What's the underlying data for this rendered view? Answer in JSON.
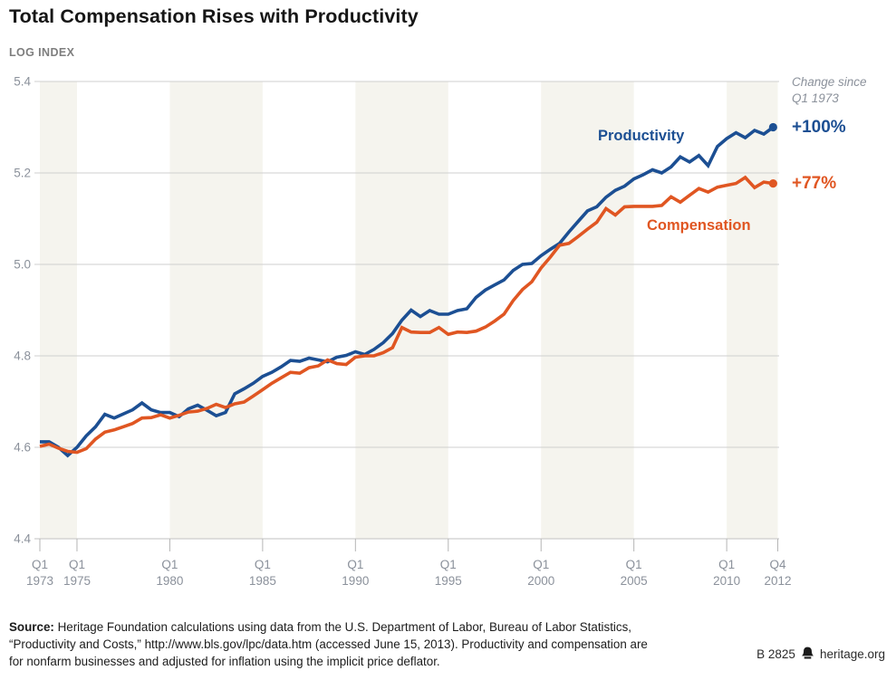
{
  "header": {
    "title": "Total Compensation Rises with Productivity"
  },
  "chart": {
    "axis_unit": "LOG INDEX",
    "note1": "Change since",
    "note2": "Q1 1973"
  },
  "chart_data": {
    "type": "line",
    "title": "Total Compensation Rises with Productivity",
    "ylabel": "LOG INDEX",
    "ylim": [
      4.4,
      5.4
    ],
    "yticks": [
      "5.4",
      "5.2",
      "5.0",
      "4.8",
      "4.6",
      "4.4"
    ],
    "ytick_values": [
      5.4,
      5.2,
      5.0,
      4.8,
      4.6,
      4.4
    ],
    "xlim": [
      1973,
      2012.75
    ],
    "xticks": [
      {
        "line1": "Q1",
        "line2": "1973",
        "x": 1973
      },
      {
        "line1": "Q1",
        "line2": "1975",
        "x": 1975
      },
      {
        "line1": "Q1",
        "line2": "1980",
        "x": 1980
      },
      {
        "line1": "Q1",
        "line2": "1985",
        "x": 1985
      },
      {
        "line1": "Q1",
        "line2": "1990",
        "x": 1990
      },
      {
        "line1": "Q1",
        "line2": "1995",
        "x": 1995
      },
      {
        "line1": "Q1",
        "line2": "2000",
        "x": 2000
      },
      {
        "line1": "Q1",
        "line2": "2005",
        "x": 2005
      },
      {
        "line1": "Q1",
        "line2": "2010",
        "x": 2010
      },
      {
        "line1": "Q4",
        "line2": "2012",
        "x": 2012.75
      }
    ],
    "bands": [
      [
        1973,
        1975
      ],
      [
        1980,
        1985
      ],
      [
        1990,
        1995
      ],
      [
        2000,
        2005
      ],
      [
        2010,
        2012.75
      ]
    ],
    "band_color": "#f5f4ee",
    "grid_color": "#cfcfcf",
    "axis_color": "#c2c2c2",
    "tick_color": "#b5b5b5",
    "tick_text_color": "#8b919b",
    "legend_position": "inline-right",
    "x_start": 1973,
    "x_step": 0.5,
    "series": [
      {
        "name": "Productivity",
        "color": "#1c4f93",
        "change_label": "+100%",
        "values": [
          4.612,
          4.612,
          4.6,
          4.582,
          4.6,
          4.625,
          4.645,
          4.672,
          4.664,
          4.673,
          4.682,
          4.697,
          4.682,
          4.676,
          4.676,
          4.667,
          4.684,
          4.692,
          4.681,
          4.669,
          4.676,
          4.717,
          4.728,
          4.74,
          4.755,
          4.764,
          4.776,
          4.79,
          4.788,
          4.795,
          4.791,
          4.787,
          4.797,
          4.801,
          4.809,
          4.803,
          4.814,
          4.829,
          4.849,
          4.878,
          4.9,
          4.886,
          4.899,
          4.891,
          4.891,
          4.899,
          4.903,
          4.928,
          4.944,
          4.955,
          4.966,
          4.987,
          5.0,
          5.002,
          5.019,
          5.033,
          5.046,
          5.071,
          5.094,
          5.117,
          5.126,
          5.147,
          5.162,
          5.171,
          5.187,
          5.196,
          5.207,
          5.2,
          5.213,
          5.235,
          5.224,
          5.238,
          5.216,
          5.258,
          5.275,
          5.288,
          5.277,
          5.293,
          5.285,
          5.3
        ]
      },
      {
        "name": "Compensation",
        "color": "#e05622",
        "change_label": "+77%",
        "values": [
          4.602,
          4.607,
          4.598,
          4.591,
          4.589,
          4.597,
          4.618,
          4.633,
          4.638,
          4.645,
          4.652,
          4.664,
          4.665,
          4.671,
          4.664,
          4.67,
          4.677,
          4.679,
          4.685,
          4.694,
          4.687,
          4.695,
          4.699,
          4.712,
          4.726,
          4.74,
          4.752,
          4.764,
          4.762,
          4.774,
          4.778,
          4.791,
          4.783,
          4.781,
          4.797,
          4.8,
          4.8,
          4.807,
          4.818,
          4.862,
          4.852,
          4.851,
          4.851,
          4.862,
          4.847,
          4.852,
          4.851,
          4.854,
          4.863,
          4.876,
          4.891,
          4.921,
          4.945,
          4.962,
          4.992,
          5.016,
          5.042,
          5.046,
          5.061,
          5.077,
          5.092,
          5.122,
          5.108,
          5.126,
          5.127,
          5.127,
          5.127,
          5.129,
          5.148,
          5.136,
          5.151,
          5.166,
          5.158,
          5.169,
          5.173,
          5.177,
          5.19,
          5.168,
          5.18,
          5.177
        ]
      }
    ]
  },
  "footer": {
    "source_label": "Source:",
    "source_text": " Heritage Foundation calculations using data from the U.S. Department of Labor, Bureau of Labor Statistics, “Productivity and Costs,” http://www.bls.gov/lpc/data.htm (accessed June 15, 2013). Productivity and compensation are for nonfarm businesses and adjusted for inflation using the implicit price deflator.",
    "chart_id": "B 2825",
    "site": "heritage.org"
  }
}
